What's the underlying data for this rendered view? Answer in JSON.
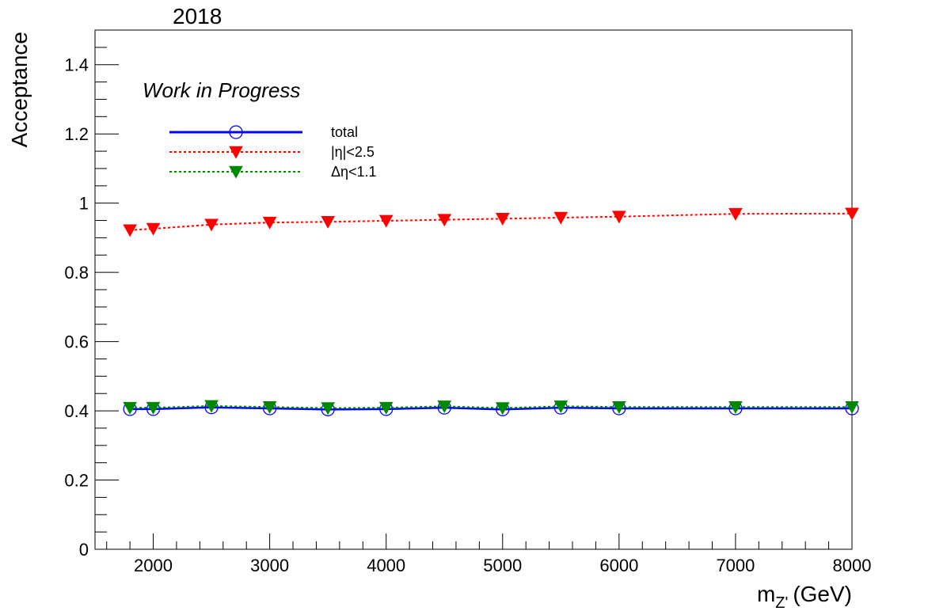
{
  "chart_data": {
    "type": "line",
    "title": "2018",
    "annotation": "Work in Progress",
    "xlabel": "m_{Z'} (GeV)",
    "xlabel_main": "m",
    "xlabel_sub": "Z'",
    "xlabel_unit": "(GeV)",
    "ylabel": "Acceptance",
    "xlim": [
      1500,
      8000
    ],
    "ylim": [
      0,
      1.5
    ],
    "x_ticks": [
      2000,
      3000,
      4000,
      5000,
      6000,
      7000,
      8000
    ],
    "x_tick_labels": [
      "2000",
      "3000",
      "4000",
      "5000",
      "6000",
      "7000",
      "8000"
    ],
    "y_ticks": [
      0,
      0.2,
      0.4,
      0.6,
      0.8,
      1,
      1.2,
      1.4
    ],
    "y_tick_labels": [
      "0",
      "0.2",
      "0.4",
      "0.6",
      "0.8",
      "1",
      "1.2",
      "1.4"
    ],
    "grid": false,
    "legend_position": "top-left",
    "x": [
      1800,
      2000,
      2500,
      3000,
      3500,
      4000,
      4500,
      5000,
      5500,
      6000,
      7000,
      8000
    ],
    "series": [
      {
        "name": "total",
        "legend_label": "total",
        "color": "#0000ff",
        "line_style": "solid",
        "marker": "open-circle",
        "values": [
          0.405,
          0.405,
          0.41,
          0.407,
          0.404,
          0.405,
          0.409,
          0.404,
          0.409,
          0.407,
          0.407,
          0.407
        ]
      },
      {
        "name": "eta-cut",
        "legend_label": "|η|<2.5",
        "color": "#ff0000",
        "line_style": "dotted",
        "marker": "filled-triangle-down",
        "values": [
          0.922,
          0.926,
          0.938,
          0.944,
          0.946,
          0.949,
          0.952,
          0.955,
          0.958,
          0.961,
          0.969,
          0.97
        ]
      },
      {
        "name": "delta-eta-cut",
        "legend_label": "Δη<1.1",
        "color": "#008800",
        "line_style": "dotted",
        "marker": "filled-triangle-down",
        "values": [
          0.409,
          0.409,
          0.414,
          0.411,
          0.408,
          0.409,
          0.413,
          0.408,
          0.413,
          0.411,
          0.411,
          0.411
        ]
      }
    ]
  }
}
